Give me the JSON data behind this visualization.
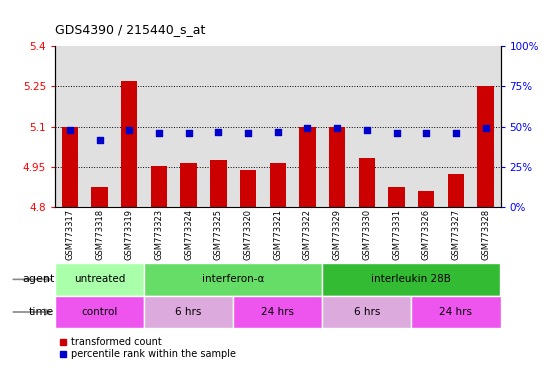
{
  "title": "GDS4390 / 215440_s_at",
  "samples": [
    "GSM773317",
    "GSM773318",
    "GSM773319",
    "GSM773323",
    "GSM773324",
    "GSM773325",
    "GSM773320",
    "GSM773321",
    "GSM773322",
    "GSM773329",
    "GSM773330",
    "GSM773331",
    "GSM773326",
    "GSM773327",
    "GSM773328"
  ],
  "bar_values": [
    5.1,
    4.875,
    5.27,
    4.955,
    4.965,
    4.975,
    4.94,
    4.965,
    5.1,
    5.1,
    4.985,
    4.875,
    4.86,
    4.925,
    5.25
  ],
  "dot_values": [
    48,
    42,
    48,
    46,
    46,
    47,
    46,
    47,
    49,
    49,
    48,
    46,
    46,
    46,
    49
  ],
  "bar_color": "#cc0000",
  "dot_color": "#0000cc",
  "ylim_left": [
    4.8,
    5.4
  ],
  "ylim_right": [
    0,
    100
  ],
  "yticks_left": [
    4.8,
    4.95,
    5.1,
    5.25,
    5.4
  ],
  "ytick_labels_left": [
    "4.8",
    "4.95",
    "5.1",
    "5.25",
    "5.4"
  ],
  "yticks_right": [
    0,
    25,
    50,
    75,
    100
  ],
  "ytick_labels_right": [
    "0%",
    "25%",
    "50%",
    "75%",
    "100%"
  ],
  "hlines": [
    4.95,
    5.1,
    5.25
  ],
  "agent_groups": [
    {
      "label": "untreated",
      "start": 0,
      "end": 3,
      "color": "#aaffaa"
    },
    {
      "label": "interferon-α",
      "start": 3,
      "end": 9,
      "color": "#66dd66"
    },
    {
      "label": "interleukin 28B",
      "start": 9,
      "end": 15,
      "color": "#33bb33"
    }
  ],
  "time_groups": [
    {
      "label": "control",
      "start": 0,
      "end": 3,
      "color": "#ee55ee"
    },
    {
      "label": "6 hrs",
      "start": 3,
      "end": 6,
      "color": "#ddaadd"
    },
    {
      "label": "24 hrs",
      "start": 6,
      "end": 9,
      "color": "#ee55ee"
    },
    {
      "label": "6 hrs",
      "start": 9,
      "end": 12,
      "color": "#ddaadd"
    },
    {
      "label": "24 hrs",
      "start": 12,
      "end": 15,
      "color": "#ee55ee"
    }
  ],
  "legend_items": [
    {
      "label": "transformed count",
      "color": "#cc0000"
    },
    {
      "label": "percentile rank within the sample",
      "color": "#0000cc"
    }
  ],
  "facecolor": "#e0e0e0"
}
